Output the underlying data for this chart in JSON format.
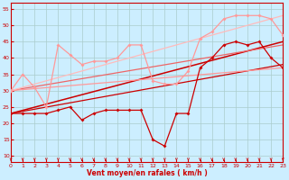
{
  "background_color": "#cceeff",
  "grid_color": "#aacccc",
  "xlabel": "Vent moyen/en rafales ( km/h )",
  "xlim": [
    0,
    23
  ],
  "ylim": [
    8,
    57
  ],
  "yticks": [
    10,
    15,
    20,
    25,
    30,
    35,
    40,
    45,
    50,
    55
  ],
  "xticks": [
    0,
    1,
    2,
    3,
    4,
    5,
    6,
    7,
    8,
    9,
    10,
    11,
    12,
    13,
    14,
    15,
    16,
    17,
    18,
    19,
    20,
    21,
    22,
    23
  ],
  "line_dark_jagged": {
    "x": [
      0,
      1,
      2,
      3,
      4,
      5,
      6,
      7,
      8,
      9,
      10,
      11,
      12,
      13,
      14,
      15,
      16,
      17,
      18,
      19,
      20,
      21,
      22,
      23
    ],
    "y": [
      23,
      23,
      23,
      23,
      24,
      25,
      21,
      23,
      24,
      24,
      24,
      24,
      15,
      13,
      23,
      23,
      37,
      40,
      44,
      45,
      44,
      45,
      40,
      37
    ],
    "color": "#cc0000",
    "lw": 0.9,
    "ms": 2.0
  },
  "line_pink_jagged": {
    "x": [
      0,
      1,
      2,
      3,
      4,
      5,
      6,
      7,
      8,
      9,
      10,
      11,
      12,
      13,
      14,
      15,
      16,
      17,
      18,
      19,
      20,
      21,
      22,
      23
    ],
    "y": [
      30,
      35,
      31,
      25,
      44,
      41,
      38,
      39,
      39,
      40,
      44,
      44,
      33,
      32,
      32,
      36,
      46,
      48,
      52,
      53,
      53,
      53,
      52,
      47
    ],
    "color": "#ff9999",
    "lw": 0.9,
    "ms": 2.0
  },
  "straight_lines": [
    {
      "x0": 0,
      "y0": 23,
      "x1": 23,
      "y1": 45,
      "color": "#cc0000",
      "lw": 1.1
    },
    {
      "x0": 0,
      "y0": 23,
      "x1": 23,
      "y1": 38,
      "color": "#cc0000",
      "lw": 0.9
    },
    {
      "x0": 0,
      "y0": 30,
      "x1": 23,
      "y1": 44,
      "color": "#ee6666",
      "lw": 0.9
    },
    {
      "x0": 0,
      "y0": 30,
      "x1": 23,
      "y1": 37,
      "color": "#ff9999",
      "lw": 0.9
    },
    {
      "x0": 0,
      "y0": 30,
      "x1": 23,
      "y1": 53,
      "color": "#ffbbbb",
      "lw": 0.9
    }
  ],
  "arrow_color": "#cc0000",
  "tick_color": "#cc0000",
  "spine_color": "#cc0000"
}
